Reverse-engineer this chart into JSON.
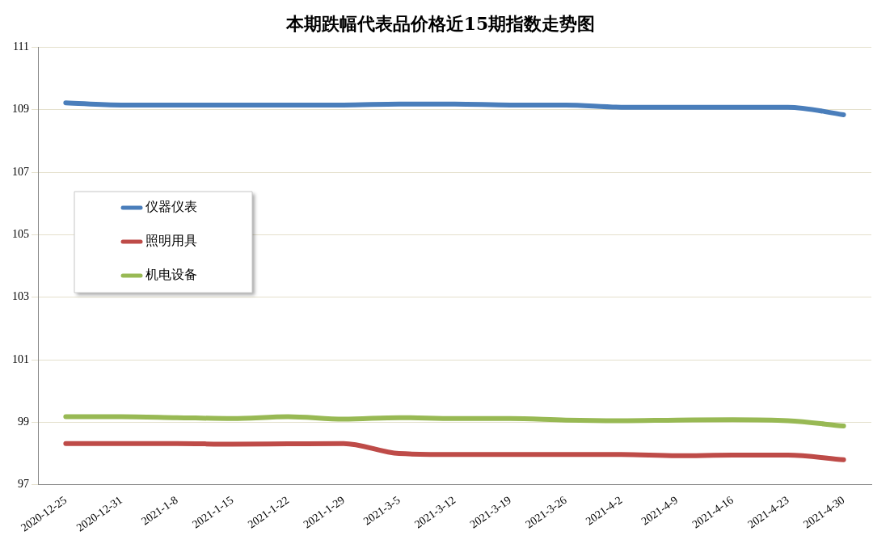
{
  "chart_data": {
    "type": "line",
    "title": "本期跌幅代表品价格近15期指数走势图",
    "categories": [
      "2020-12-25",
      "2020-12-31",
      "2021-1-8",
      "2021-1-15",
      "2021-1-22",
      "2021-1-29",
      "2021-3-5",
      "2021-3-12",
      "2021-3-19",
      "2021-3-26",
      "2021-4-2",
      "2021-4-9",
      "2021-4-16",
      "2021-4-23",
      "2021-4-30"
    ],
    "series": [
      {
        "name": "仪器仪表",
        "color": "#4a7ebb",
        "values": [
          109.22,
          109.15,
          109.15,
          109.15,
          109.15,
          109.15,
          109.18,
          109.18,
          109.15,
          109.15,
          109.08,
          109.08,
          109.08,
          109.08,
          108.84
        ]
      },
      {
        "name": "照明用具",
        "color": "#be4b48",
        "values": [
          98.32,
          98.32,
          98.32,
          98.3,
          98.31,
          98.32,
          98.0,
          97.97,
          97.97,
          97.97,
          97.97,
          97.93,
          97.95,
          97.95,
          97.8
        ]
      },
      {
        "name": "机电设备",
        "color": "#98b954",
        "values": [
          99.18,
          99.18,
          99.15,
          99.12,
          99.18,
          99.1,
          99.15,
          99.12,
          99.12,
          99.07,
          99.05,
          99.07,
          99.08,
          99.05,
          98.88
        ]
      }
    ],
    "ylim": [
      97,
      111
    ],
    "yticks": [
      97,
      99,
      101,
      103,
      105,
      107,
      109,
      111
    ],
    "grid": "y",
    "legend": "left",
    "marker": "none",
    "line_style": "solid"
  }
}
